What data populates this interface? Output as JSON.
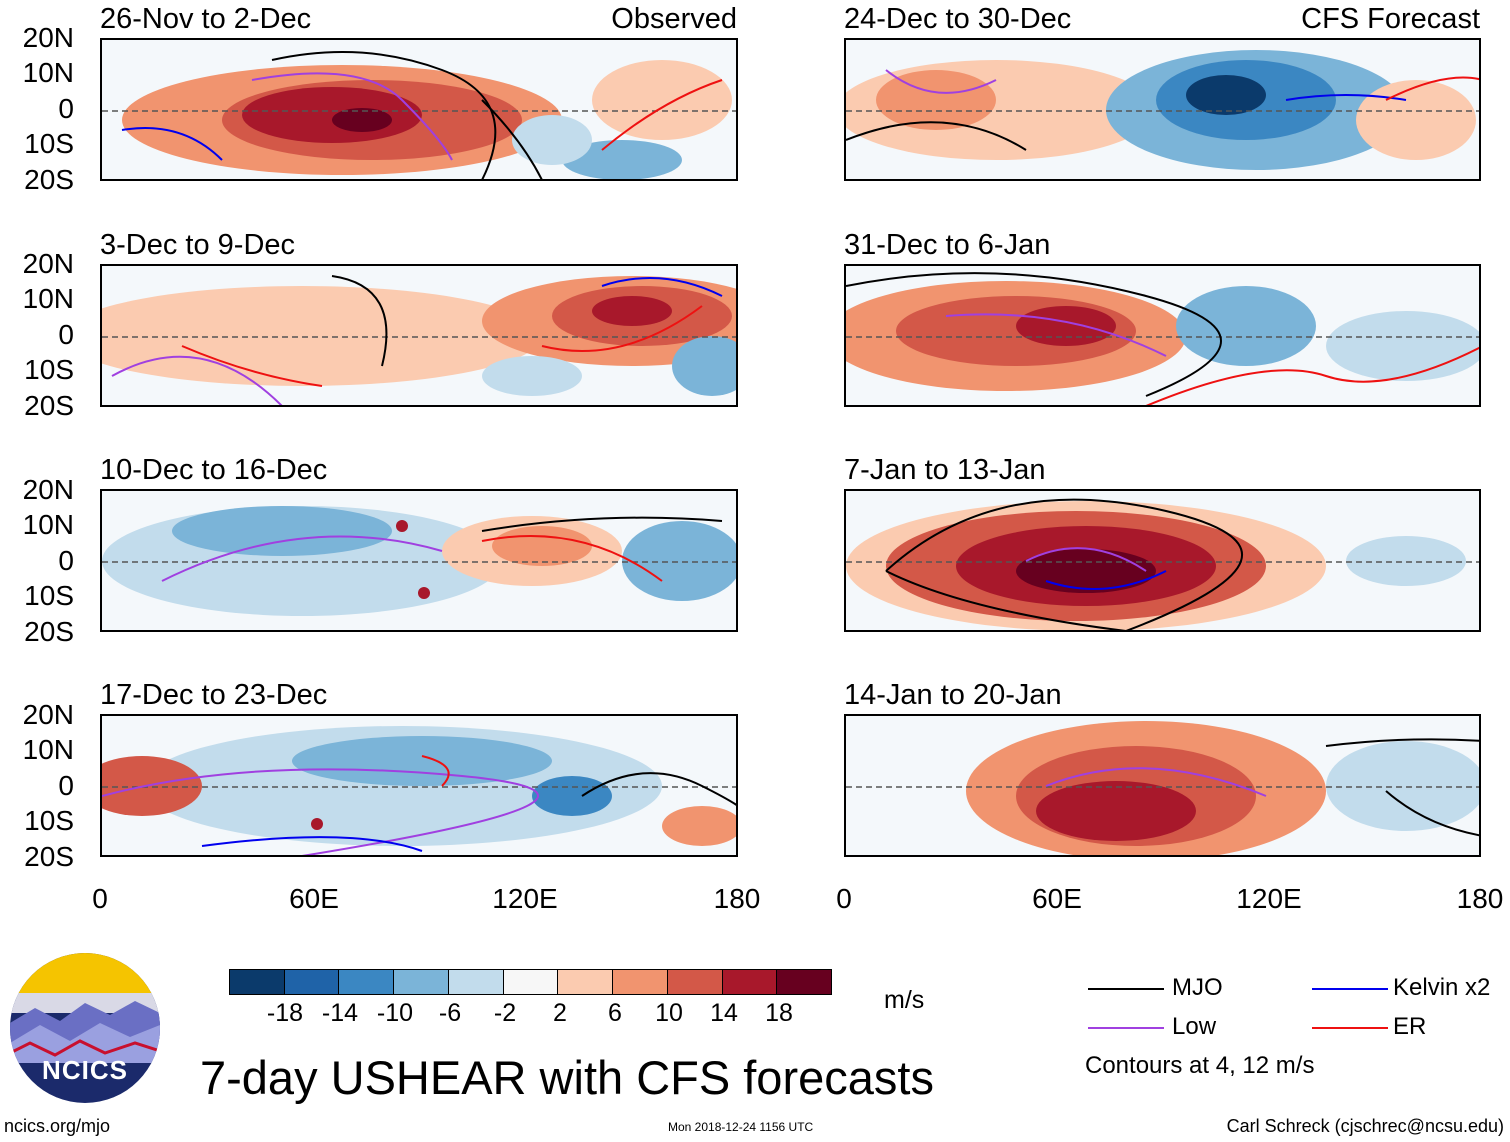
{
  "panels": [
    {
      "id": "p1",
      "title": "26-Nov to 2-Dec",
      "tag": "Observed"
    },
    {
      "id": "p2",
      "title": "24-Dec to 30-Dec",
      "tag": "CFS Forecast"
    },
    {
      "id": "p3",
      "title": "3-Dec to 9-Dec",
      "tag": ""
    },
    {
      "id": "p4",
      "title": "31-Dec to 6-Jan",
      "tag": ""
    },
    {
      "id": "p5",
      "title": "10-Dec to 16-Dec",
      "tag": ""
    },
    {
      "id": "p6",
      "title": "7-Jan to 13-Jan",
      "tag": ""
    },
    {
      "id": "p7",
      "title": "17-Dec to 23-Dec",
      "tag": ""
    },
    {
      "id": "p8",
      "title": "14-Jan to 20-Jan",
      "tag": ""
    }
  ],
  "axes": {
    "y_labels": [
      "20N",
      "10N",
      "0",
      "10S",
      "20S"
    ],
    "x_labels": [
      "0",
      "60E",
      "120E",
      "180"
    ]
  },
  "colorbar": {
    "ticks": [
      "-18",
      "-14",
      "-10",
      "-6",
      "-2",
      "2",
      "6",
      "10",
      "14",
      "18"
    ],
    "colors": [
      "#0b3a6b",
      "#1f63a8",
      "#3b87c2",
      "#7bb4d8",
      "#c2dcec",
      "#f7f7f7",
      "#fbcbb0",
      "#f1946f",
      "#d35848",
      "#a8182b",
      "#67001f"
    ],
    "units": "m/s"
  },
  "legend": {
    "items": [
      {
        "label": "MJO",
        "color": "#000000"
      },
      {
        "label": "Kelvin x2",
        "color": "#0000ee"
      },
      {
        "label": "Low",
        "color": "#a040e0"
      },
      {
        "label": "ER",
        "color": "#ee1111"
      }
    ],
    "note": "Contours at 4, 12 m/s"
  },
  "logo": {
    "text": "NCICS"
  },
  "main_title": "7-day USHEAR with CFS forecasts",
  "footer": {
    "left": "ncics.org/mjo",
    "center": "Mon 2018-12-24 1156 UTC",
    "right": "Carl Schreck (cjschrec@ncsu.edu)"
  }
}
